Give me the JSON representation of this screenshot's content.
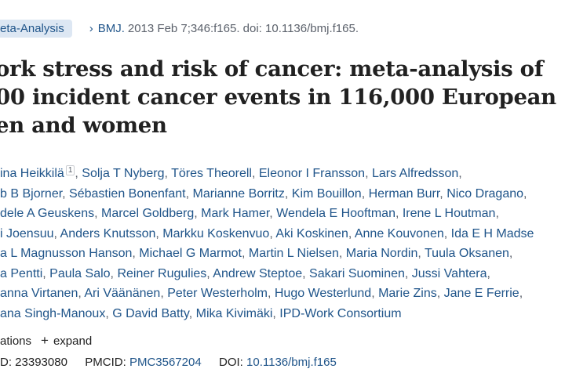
{
  "article_type": "eta-Analysis",
  "citation": {
    "journal": "BMJ.",
    "details": "2013 Feb 7;346:f165. doi: 10.1136/bmj.f165."
  },
  "title_lines": [
    "ork stress and risk of cancer: meta-analysis of",
    "00 incident cancer events in 116,000 European",
    "en and women"
  ],
  "authors": {
    "rows": [
      [
        "ina Heikkilä",
        "Solja T Nyberg",
        "Töres Theorell",
        "Eleonor I Fransson",
        "Lars Alfredsson,"
      ],
      [
        "b B Bjorner",
        "Sébastien Bonenfant",
        "Marianne Borritz",
        "Kim Bouillon",
        "Herman Burr",
        "Nico Dragano,"
      ],
      [
        "dele A Geuskens",
        "Marcel Goldberg",
        "Mark Hamer",
        "Wendela E Hooftman",
        "Irene L Houtman,"
      ],
      [
        "i Joensuu",
        "Anders Knutsson",
        "Markku Koskenvuo",
        "Aki Koskinen",
        "Anne Kouvonen",
        "Ida E H Madse"
      ],
      [
        "a L Magnusson Hanson",
        "Michael G Marmot",
        "Martin L Nielsen",
        "Maria Nordin",
        "Tuula Oksanen,"
      ],
      [
        "a Pentti",
        "Paula Salo",
        "Reiner Rugulies",
        "Andrew Steptoe",
        "Sakari Suominen",
        "Jussi Vahtera,"
      ],
      [
        "anna Virtanen",
        "Ari Väänänen",
        "Peter Westerholm",
        "Hugo Westerlund",
        "Marie Zins",
        "Jane E Ferrie,"
      ],
      [
        "ana Singh-Manoux",
        "G David Batty",
        "Mika Kivimäki",
        "IPD-Work Consortium"
      ]
    ],
    "first_sup": "1"
  },
  "affiliations": {
    "label": "ations",
    "expand": "expand"
  },
  "identifiers": {
    "pmid_label": "D:",
    "pmid": "23393080",
    "pmcid_label": "PMCID:",
    "pmcid": "PMC3567204",
    "doi_label": "DOI:",
    "doi": "10.1136/bmj.f165"
  },
  "colors": {
    "link": "#20558a",
    "badge_bg": "#dde7f3",
    "text": "#212121"
  }
}
